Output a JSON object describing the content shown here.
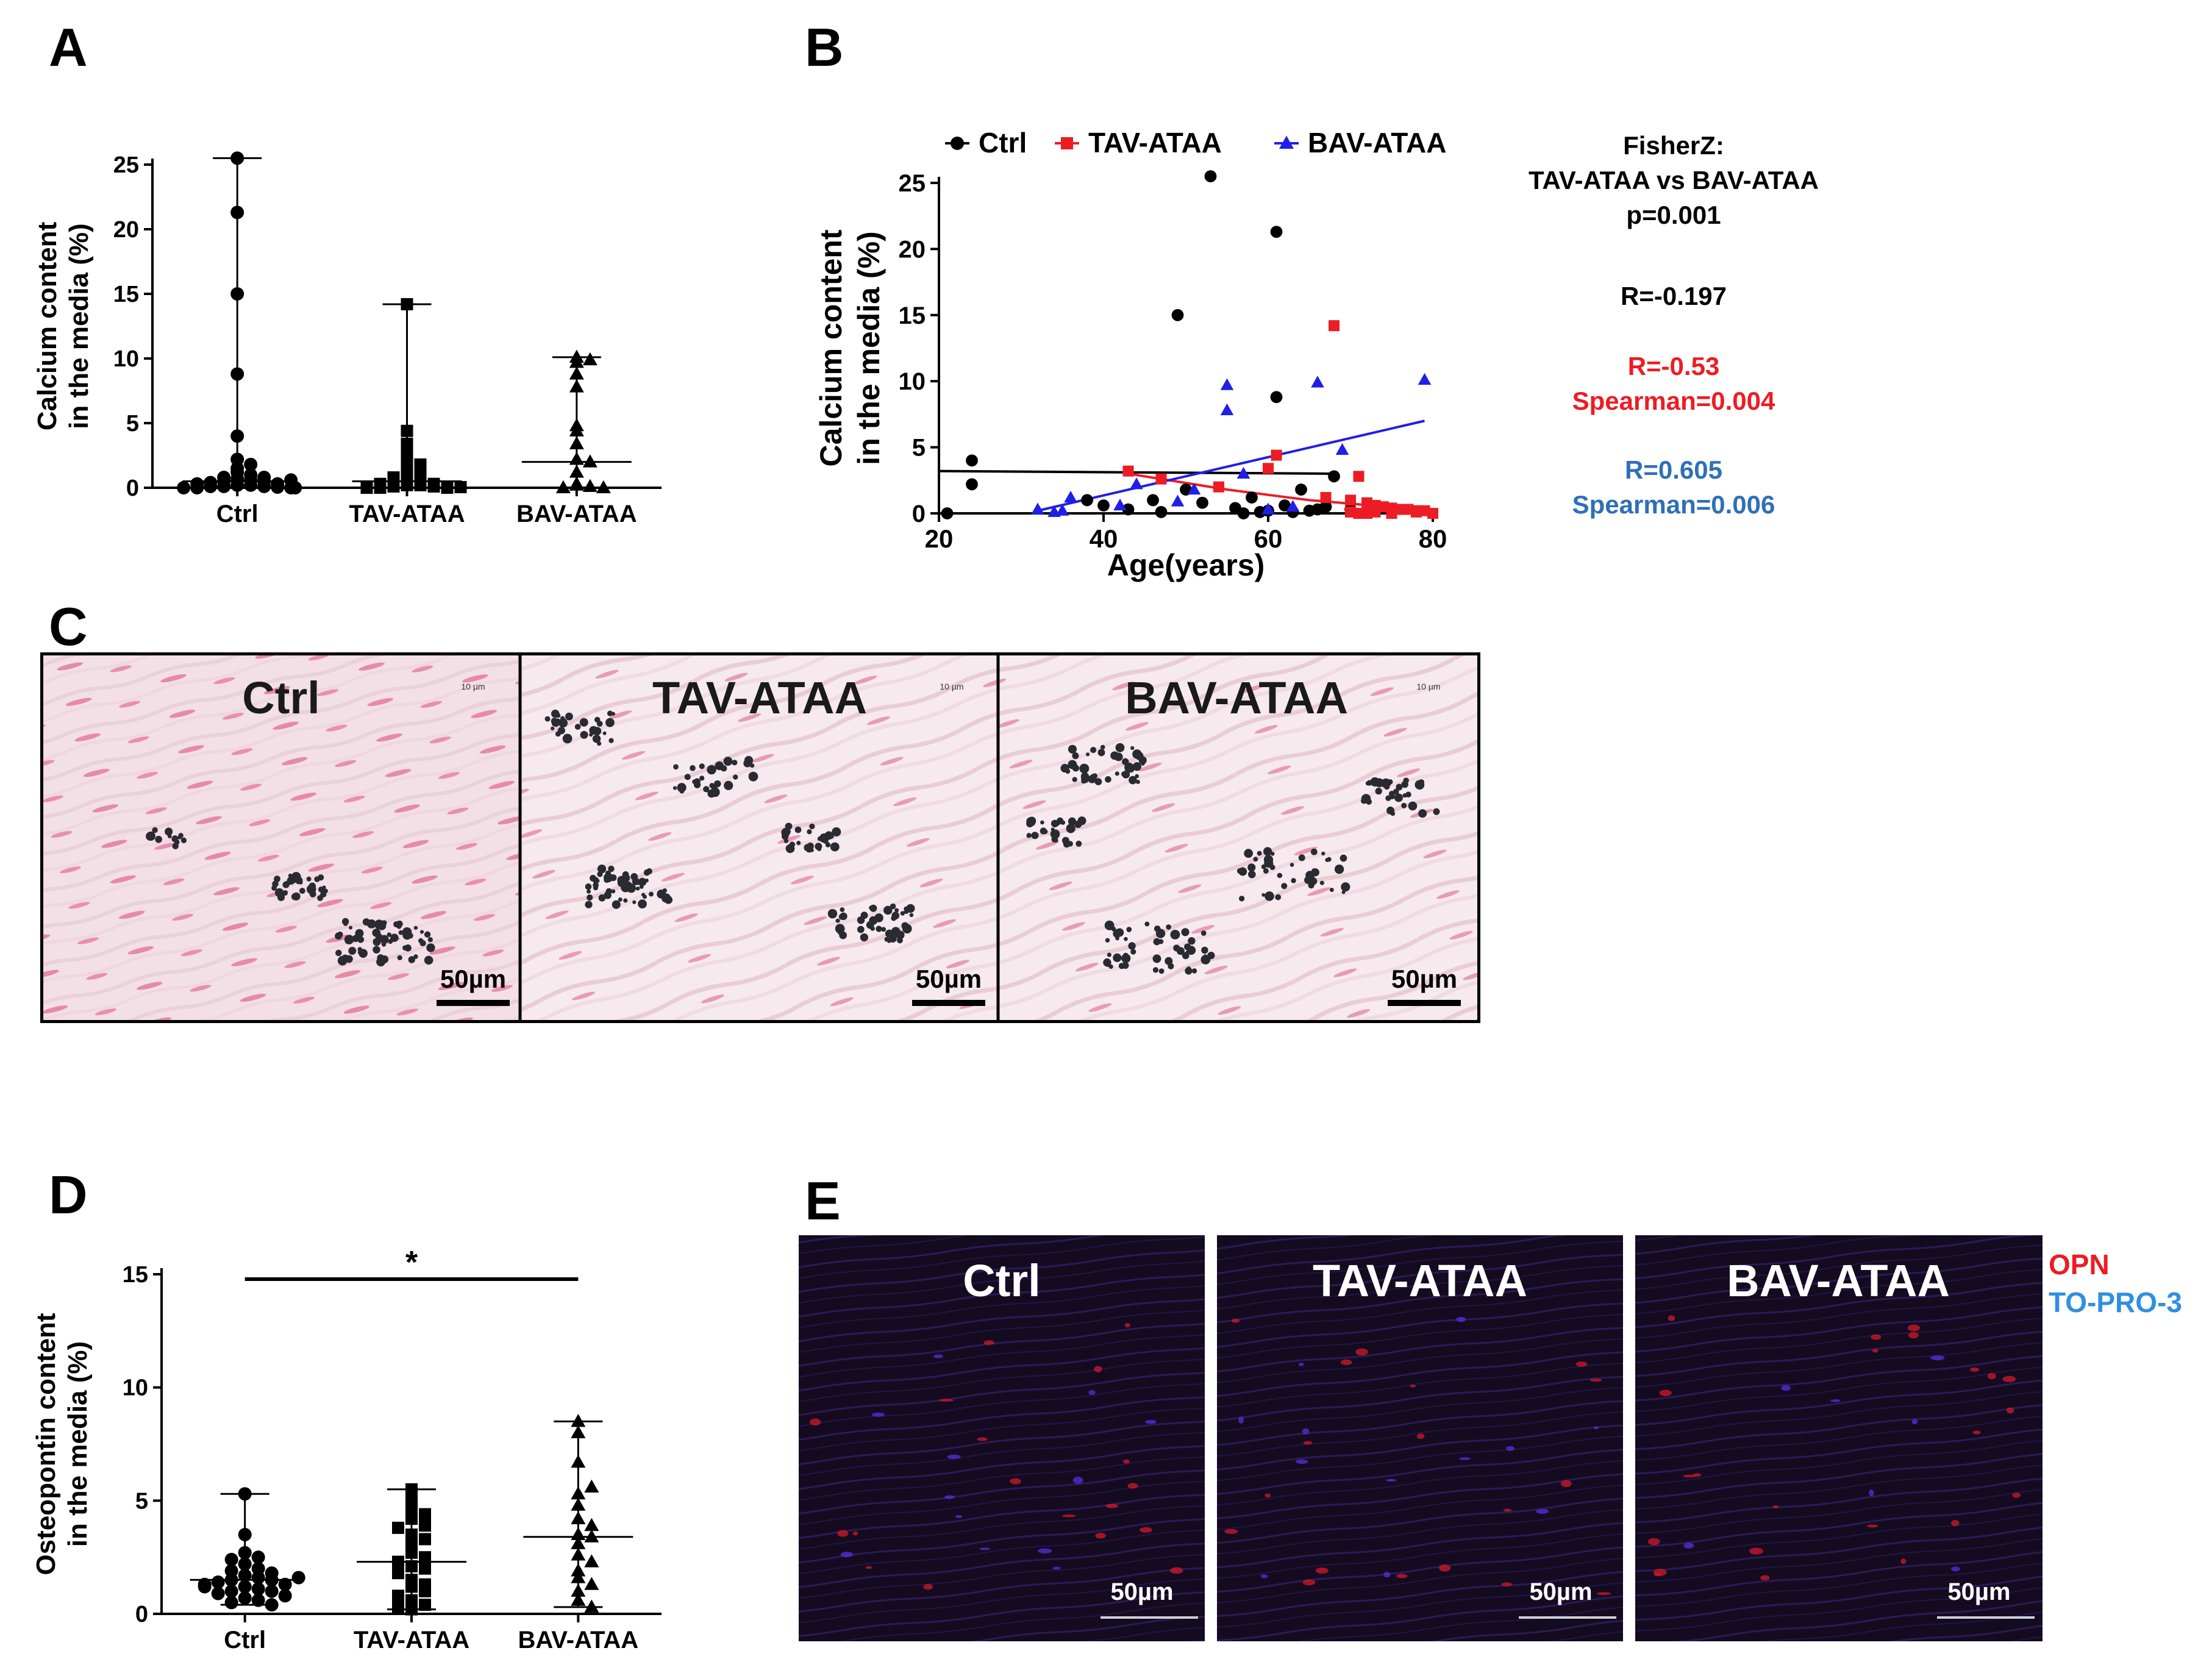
{
  "panel_letters": {
    "a": "A",
    "b": "B",
    "c": "C",
    "d": "D",
    "e": "E"
  },
  "colors": {
    "black": "#000000",
    "red": "#ed1c24",
    "blue": "#1f1fe6",
    "blue_text": "#2f6fb7",
    "opn": "#ed1c24",
    "topro": "#2f8fe0"
  },
  "chart_data": [
    {
      "id": "A",
      "type": "scatter",
      "ylabel_line1": "Calcium content",
      "ylabel_line2": "in the media (%)",
      "ylim": [
        0,
        25
      ],
      "yticks": [
        0,
        5,
        10,
        15,
        20,
        25
      ],
      "categories": [
        "Ctrl",
        "TAV-ATAA",
        "BAV-ATAA"
      ],
      "series": [
        {
          "marker": "circle",
          "median": 0.5,
          "min": 0,
          "max": 25.5,
          "values": [
            25.5,
            21.3,
            15.0,
            8.8,
            4.0,
            2.2,
            1.8,
            1.5,
            1.2,
            1.0,
            0.8,
            0.7,
            0.6,
            0.5,
            0.5,
            0.4,
            0.3,
            0.3,
            0.2,
            0.2,
            0.1,
            0.1,
            0.1,
            0.05,
            0,
            0,
            0,
            0,
            0.8,
            0.6
          ]
        },
        {
          "marker": "square",
          "median": 0.5,
          "min": 0,
          "max": 14.2,
          "values": [
            14.2,
            4.4,
            3.4,
            3.0,
            2.6,
            2.2,
            1.8,
            1.5,
            1.2,
            1.0,
            0.8,
            0.6,
            0.5,
            0.4,
            0.3,
            0.3,
            0.2,
            0.2,
            0.1,
            0.1,
            0,
            0,
            0,
            0.05
          ]
        },
        {
          "marker": "triangle",
          "median": 2.0,
          "min": 0,
          "max": 10.1,
          "values": [
            10.1,
            9.9,
            9.7,
            8.8,
            7.8,
            4.8,
            4.4,
            3.4,
            2.2,
            2.0,
            1.2,
            0.3,
            0.2,
            0.1,
            0,
            0
          ]
        }
      ]
    },
    {
      "id": "B",
      "type": "scatter",
      "xlabel": "Age(years)",
      "ylabel_line1": "Calcium content",
      "ylabel_line2": "in the media (%)",
      "xlim": [
        20,
        80
      ],
      "ylim": [
        0,
        25
      ],
      "xticks": [
        20,
        40,
        60,
        80
      ],
      "yticks": [
        0,
        5,
        10,
        15,
        20,
        25
      ],
      "legend": [
        "Ctrl",
        "TAV-ATAA",
        "BAV-ATAA"
      ],
      "series": [
        {
          "name": "Ctrl",
          "marker": "circle",
          "color": "#000000",
          "points": [
            [
              53,
              25.5
            ],
            [
              61,
              21.3
            ],
            [
              49,
              15.0
            ],
            [
              61,
              8.8
            ],
            [
              24,
              4.0
            ],
            [
              24,
              2.2
            ],
            [
              68,
              2.8
            ],
            [
              46,
              1.0
            ],
            [
              52,
              0.8
            ],
            [
              56,
              0.4
            ],
            [
              58,
              1.2
            ],
            [
              62,
              0.6
            ],
            [
              64,
              1.8
            ],
            [
              66,
              0.3
            ],
            [
              40,
              0.6
            ],
            [
              43,
              0.3
            ],
            [
              38,
              1.0
            ],
            [
              50,
              1.8
            ],
            [
              60,
              0.2
            ],
            [
              63,
              0.1
            ],
            [
              67,
              0.5
            ],
            [
              70,
              0.3
            ],
            [
              21,
              0
            ],
            [
              57,
              0
            ],
            [
              59,
              0.1
            ],
            [
              65,
              0.2
            ],
            [
              47,
              0.1
            ]
          ],
          "fit": [
            [
              20,
              3.2
            ],
            [
              68,
              3.0
            ]
          ]
        },
        {
          "name": "TAV-ATAA",
          "marker": "square",
          "color": "#ed1c24",
          "points": [
            [
              68,
              14.2
            ],
            [
              61,
              4.4
            ],
            [
              60,
              3.4
            ],
            [
              43,
              3.2
            ],
            [
              71,
              2.8
            ],
            [
              47,
              2.6
            ],
            [
              54,
              2.0
            ],
            [
              67,
              1.2
            ],
            [
              70,
              1.0
            ],
            [
              72,
              0.8
            ],
            [
              73,
              0.6
            ],
            [
              74,
              0.5
            ],
            [
              75,
              0.4
            ],
            [
              76,
              0.3
            ],
            [
              77,
              0.3
            ],
            [
              78,
              0.2
            ],
            [
              79,
              0.2
            ],
            [
              70,
              0.1
            ],
            [
              71,
              0
            ],
            [
              72,
              0
            ],
            [
              73,
              0.1
            ],
            [
              75,
              0
            ],
            [
              78,
              0.1
            ],
            [
              80,
              0
            ]
          ],
          "fit": [
            [
              43,
              3.0
            ],
            [
              55,
              1.8
            ],
            [
              65,
              1.0
            ],
            [
              80,
              0.2
            ]
          ]
        },
        {
          "name": "BAV-ATAA",
          "marker": "triangle",
          "color": "#1f1fe6",
          "points": [
            [
              79,
              10.1
            ],
            [
              55,
              9.7
            ],
            [
              66,
              9.9
            ],
            [
              55,
              7.8
            ],
            [
              69,
              4.8
            ],
            [
              57,
              3.0
            ],
            [
              44,
              2.2
            ],
            [
              36,
              1.2
            ],
            [
              32,
              0.3
            ],
            [
              34,
              0.1
            ],
            [
              49,
              0.9
            ],
            [
              51,
              1.8
            ],
            [
              60,
              0.3
            ],
            [
              63,
              0.5
            ],
            [
              35,
              0.2
            ],
            [
              42,
              0.6
            ]
          ],
          "fit": [
            [
              32,
              0.2
            ],
            [
              79,
              7.0
            ]
          ]
        }
      ]
    },
    {
      "id": "D",
      "type": "scatter",
      "ylabel_line1": "Osteopontin content",
      "ylabel_line2": "in the media (%)",
      "ylim": [
        0,
        15
      ],
      "yticks": [
        0,
        5,
        10,
        15
      ],
      "categories": [
        "Ctrl",
        "TAV-ATAA",
        "BAV-ATAA"
      ],
      "significance": "*",
      "series": [
        {
          "marker": "circle",
          "median": 1.5,
          "min": 0.4,
          "max": 5.3,
          "values": [
            5.3,
            3.5,
            2.7,
            2.5,
            2.4,
            2.2,
            2.0,
            1.9,
            1.8,
            1.7,
            1.6,
            1.5,
            1.5,
            1.4,
            1.3,
            1.3,
            1.2,
            1.1,
            1.0,
            1.0,
            0.9,
            0.8,
            0.7,
            0.6,
            0.5,
            0.4,
            1.6,
            1.2
          ]
        },
        {
          "marker": "square",
          "median": 2.3,
          "min": 0.2,
          "max": 5.5,
          "values": [
            5.5,
            5.1,
            4.6,
            4.2,
            3.9,
            3.8,
            3.5,
            3.3,
            3.0,
            2.7,
            2.5,
            2.3,
            2.1,
            2.0,
            1.8,
            1.5,
            1.3,
            1.2,
            1.0,
            0.8,
            0.6,
            0.4,
            0.3,
            0.2,
            4.4
          ]
        },
        {
          "marker": "triangle",
          "median": 3.4,
          "min": 0.3,
          "max": 8.5,
          "values": [
            8.5,
            8.0,
            6.7,
            5.3,
            4.8,
            4.2,
            3.5,
            3.4,
            3.1,
            2.6,
            2.3,
            1.9,
            1.6,
            1.3,
            1.0,
            0.6,
            0.3,
            5.6,
            3.9
          ]
        }
      ]
    }
  ],
  "panel_b_stats": {
    "fisher_line1": "FisherZ:",
    "fisher_line2": "TAV-ATAA vs BAV-ATAA",
    "fisher_line3": "p=0.001",
    "ctrl_r": "R=-0.197",
    "tav_r": "R=-0.53",
    "tav_s": "Spearman=0.004",
    "bav_r": "R=0.605",
    "bav_s": "Spearman=0.006"
  },
  "panel_c": {
    "labels": [
      "Ctrl",
      "TAV-ATAA",
      "BAV-ATAA"
    ],
    "scalebar": "50µm",
    "tiny_scale": "10 µm"
  },
  "panel_e": {
    "labels": [
      "Ctrl",
      "TAV-ATAA",
      "BAV-ATAA"
    ],
    "scalebar": "50µm",
    "legend_opn": "OPN",
    "legend_topro": "TO-PRO-3"
  }
}
